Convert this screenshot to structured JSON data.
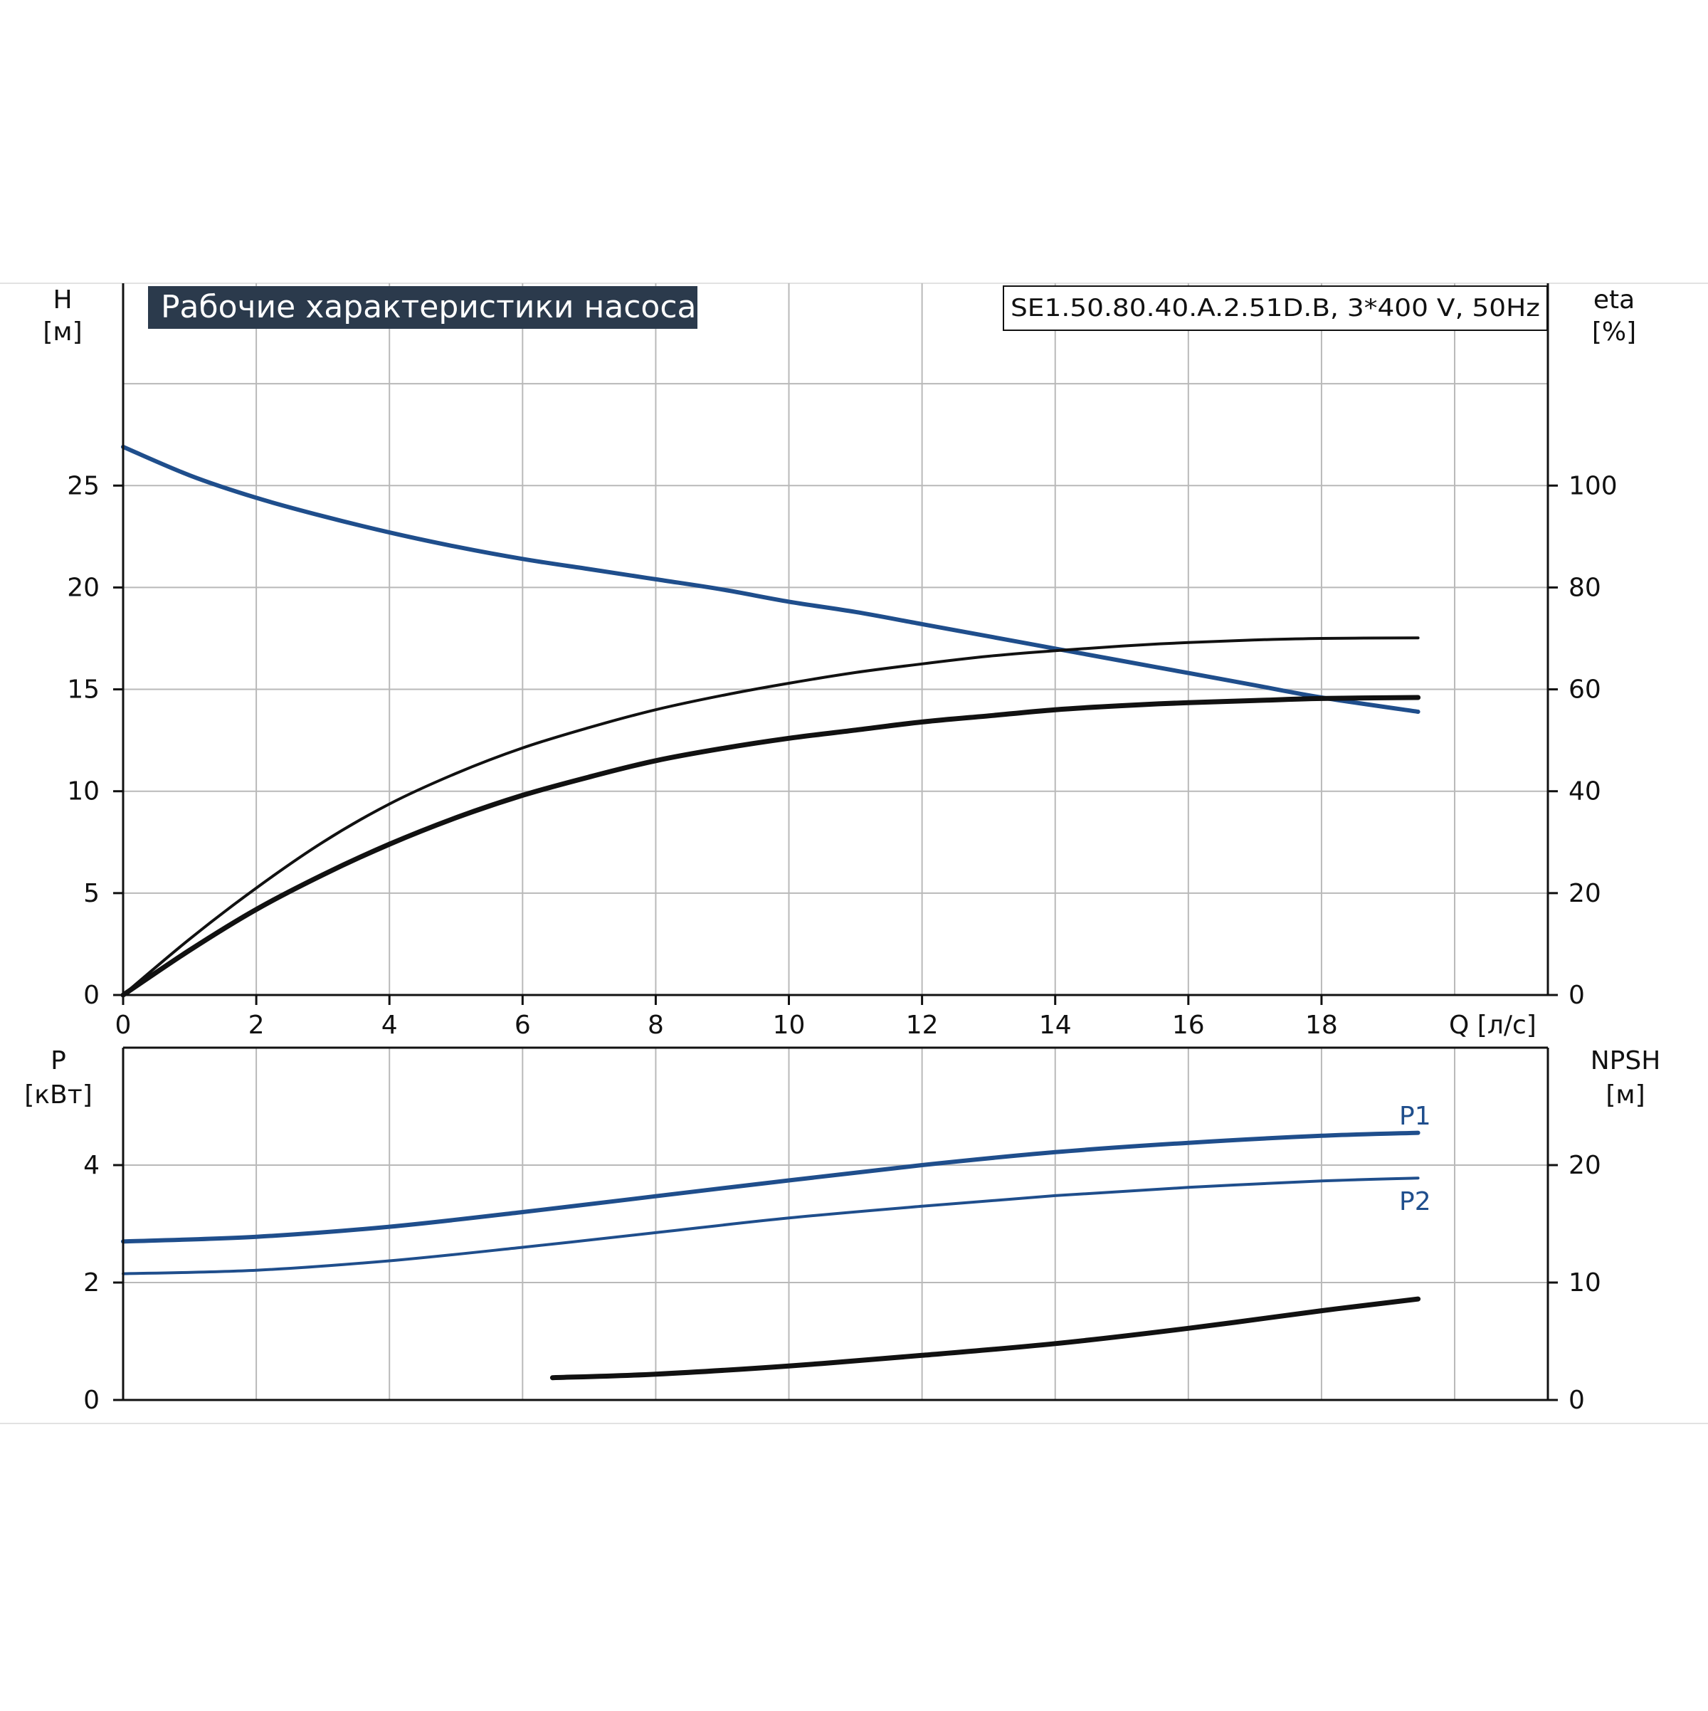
{
  "chart_data": [
    {
      "type": "line",
      "title": "Рабочие характеристики насоса",
      "model_label": "SE1.50.80.40.A.2.51D.B, 3*400 V, 50Hz",
      "xlabel": "Q [л/с]",
      "ylabel": "H",
      "ylabel_unit": "[м]",
      "y2label": "eta",
      "y2label_unit": "[%]",
      "xlim": [
        0,
        21.4
      ],
      "ylim": [
        0,
        30
      ],
      "y2lim": [
        0,
        120
      ],
      "x_ticks": [
        "0",
        "2",
        "4",
        "6",
        "8",
        "10",
        "12",
        "14",
        "16",
        "18"
      ],
      "y_ticks": [
        "0",
        "5",
        "10",
        "15",
        "20",
        "25"
      ],
      "y2_ticks": [
        "0",
        "20",
        "40",
        "60",
        "80",
        "100"
      ],
      "grid": true,
      "colors": {
        "blue": "#1f4e8c",
        "black": "#111111"
      },
      "series": [
        {
          "axis": "left",
          "color": "#1f4e8c",
          "width": 6,
          "x": [
            0,
            1,
            2,
            3,
            4,
            5,
            6,
            7,
            8,
            9,
            10,
            11,
            12,
            13,
            14,
            15,
            16,
            17,
            18,
            19.45
          ],
          "values": [
            26.9,
            25.5,
            24.4,
            23.5,
            22.7,
            22.0,
            21.4,
            20.9,
            20.4,
            19.9,
            19.3,
            18.8,
            18.2,
            17.6,
            17.0,
            16.4,
            15.8,
            15.2,
            14.6,
            13.9
          ]
        },
        {
          "axis": "right",
          "color": "#111111",
          "width": 4,
          "x": [
            0,
            1,
            2,
            3,
            4,
            5,
            6,
            7,
            8,
            9,
            10,
            11,
            12,
            13,
            14,
            15,
            16,
            17,
            18,
            19.45
          ],
          "values": [
            0,
            11,
            21,
            30,
            37.5,
            43.5,
            48.5,
            52.5,
            56,
            58.8,
            61.2,
            63.3,
            65,
            66.5,
            67.6,
            68.5,
            69.2,
            69.7,
            70,
            70.1
          ]
        },
        {
          "axis": "left",
          "color": "#111111",
          "width": 7,
          "x": [
            0,
            1,
            2,
            3,
            4,
            5,
            6,
            7,
            8,
            9,
            10,
            11,
            12,
            13,
            14,
            15,
            16,
            17,
            18,
            19.45
          ],
          "values": [
            0,
            2.2,
            4.2,
            5.9,
            7.4,
            8.7,
            9.8,
            10.7,
            11.5,
            12.1,
            12.6,
            13.0,
            13.4,
            13.7,
            14.0,
            14.2,
            14.35,
            14.45,
            14.55,
            14.6
          ]
        }
      ]
    },
    {
      "type": "line",
      "xlabel": "",
      "ylabel": "P",
      "ylabel_unit": "[кВт]",
      "y2label": "NPSH",
      "y2label_unit": "[м]",
      "xlim": [
        0,
        21.4
      ],
      "ylim": [
        0,
        6
      ],
      "y2lim": [
        0,
        30
      ],
      "y_ticks": [
        "0",
        "2",
        "4"
      ],
      "y2_ticks": [
        "0",
        "10",
        "20"
      ],
      "grid": true,
      "series": [
        {
          "name": "P1",
          "axis": "left",
          "color": "#1f4e8c",
          "width": 6,
          "x": [
            0,
            2,
            4,
            6,
            8,
            10,
            12,
            14,
            16,
            18,
            19.45
          ],
          "values": [
            2.7,
            2.78,
            2.95,
            3.2,
            3.47,
            3.74,
            4.0,
            4.22,
            4.38,
            4.5,
            4.55
          ]
        },
        {
          "name": "P2",
          "axis": "left",
          "color": "#1f4e8c",
          "width": 4,
          "x": [
            0,
            2,
            4,
            6,
            8,
            10,
            12,
            14,
            16,
            18,
            19.45
          ],
          "values": [
            2.15,
            2.21,
            2.37,
            2.6,
            2.85,
            3.1,
            3.3,
            3.48,
            3.62,
            3.73,
            3.78
          ]
        },
        {
          "axis": "right",
          "color": "#111111",
          "width": 7,
          "x": [
            6.45,
            8,
            10,
            12,
            14,
            16,
            18,
            19.45
          ],
          "values": [
            1.9,
            2.2,
            2.9,
            3.8,
            4.8,
            6.1,
            7.6,
            8.6
          ]
        }
      ]
    }
  ]
}
